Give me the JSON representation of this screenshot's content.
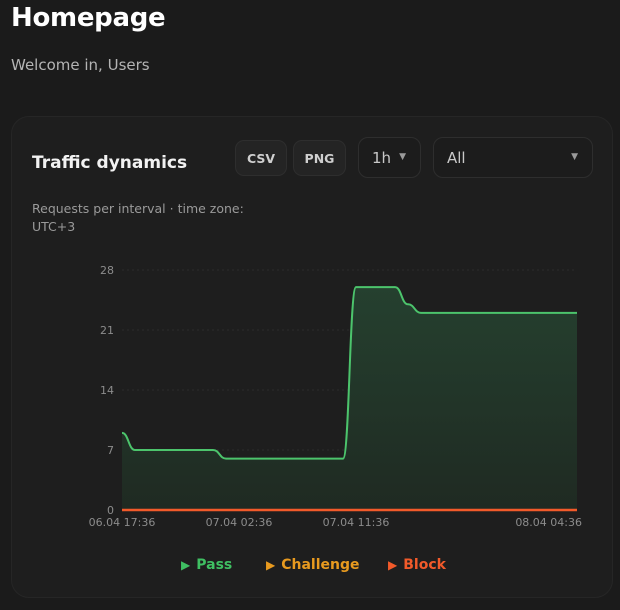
{
  "header": {
    "title": "Homepage",
    "welcome": "Welcome in, Users"
  },
  "card": {
    "title": "Traffic dynamics",
    "subtitle": "Requests per interval · time zone: UTC+3",
    "buttons": {
      "csv": "CSV",
      "png": "PNG"
    },
    "interval_select": {
      "value": "1h",
      "icon": "caret-down-icon"
    },
    "filter_select": {
      "value": "All",
      "icon": "caret-down-icon"
    }
  },
  "legend": [
    {
      "label": "Pass",
      "color": "#3fbf62",
      "icon": "play-triangle-icon"
    },
    {
      "label": "Challenge",
      "color": "#e89a1f",
      "icon": "play-triangle-icon"
    },
    {
      "label": "Block",
      "color": "#f25a2a",
      "icon": "play-triangle-icon"
    }
  ],
  "colors": {
    "background": "#1b1b1b",
    "card": "#1e1e1e",
    "pass_line": "#4cc46c",
    "pass_fill": "#233a2b",
    "block_line": "#f25a2a",
    "grid": "#2c2c2c"
  },
  "chart_data": {
    "type": "area",
    "title": "Traffic dynamics",
    "subtitle": "Requests per interval · time zone: UTC+3",
    "xlabel": "",
    "ylabel": "",
    "ylim": [
      0,
      28
    ],
    "yticks": [
      "0",
      "7",
      "14",
      "21",
      "28"
    ],
    "xticks": [
      "06.04 17:36",
      "07.04 02:36",
      "07.04 11:36",
      "08.04 04:36"
    ],
    "grid": true,
    "legend_position": "bottom",
    "x": [
      "06.04 17:36",
      "06.04 18:36",
      "06.04 19:36",
      "06.04 20:36",
      "06.04 21:36",
      "06.04 22:36",
      "06.04 23:36",
      "07.04 00:36",
      "07.04 01:36",
      "07.04 02:36",
      "07.04 03:36",
      "07.04 04:36",
      "07.04 05:36",
      "07.04 06:36",
      "07.04 07:36",
      "07.04 08:36",
      "07.04 09:36",
      "07.04 10:36",
      "07.04 11:36",
      "07.04 12:36",
      "07.04 13:36",
      "07.04 14:36",
      "07.04 15:36",
      "07.04 16:36",
      "07.04 17:36",
      "07.04 18:36",
      "07.04 19:36",
      "07.04 20:36",
      "07.04 21:36",
      "07.04 22:36",
      "07.04 23:36",
      "08.04 00:36",
      "08.04 01:36",
      "08.04 02:36",
      "08.04 03:36",
      "08.04 04:36"
    ],
    "series": [
      {
        "name": "Pass",
        "values": [
          9,
          7,
          7,
          7,
          7,
          7,
          7,
          7,
          6,
          6,
          6,
          6,
          6,
          6,
          6,
          6,
          6,
          6,
          26,
          26,
          26,
          26,
          24,
          23,
          23,
          23,
          23,
          23,
          23,
          23,
          23,
          23,
          23,
          23,
          23,
          23
        ]
      },
      {
        "name": "Challenge",
        "values": [
          0,
          0,
          0,
          0,
          0,
          0,
          0,
          0,
          0,
          0,
          0,
          0,
          0,
          0,
          0,
          0,
          0,
          0,
          0,
          0,
          0,
          0,
          0,
          0,
          0,
          0,
          0,
          0,
          0,
          0,
          0,
          0,
          0,
          0,
          0,
          0
        ]
      },
      {
        "name": "Block",
        "values": [
          0,
          0,
          0,
          0,
          0,
          0,
          0,
          0,
          0,
          0,
          0,
          0,
          0,
          0,
          0,
          0,
          0,
          0,
          0,
          0,
          0,
          0,
          0,
          0,
          0,
          0,
          0,
          0,
          0,
          0,
          0,
          0,
          0,
          0,
          0,
          0
        ]
      }
    ]
  }
}
